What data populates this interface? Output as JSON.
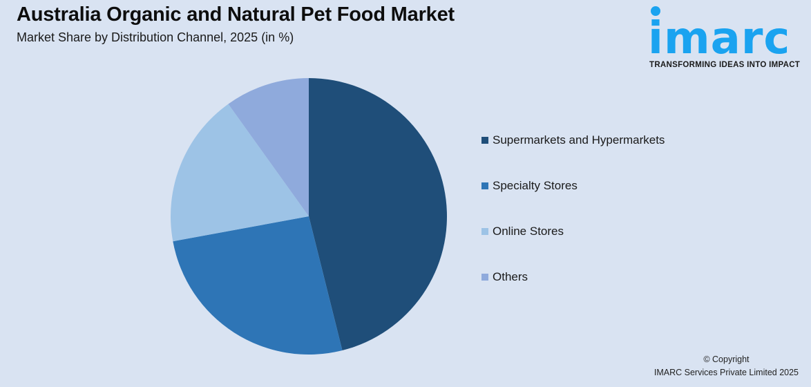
{
  "header": {
    "title": "Australia Organic and Natural Pet Food Market",
    "subtitle": "Market Share by Distribution Channel, 2025 (in %)"
  },
  "logo": {
    "wordmark": "imarc",
    "tagline": "TRANSFORMING IDEAS INTO IMPACT",
    "color": "#1aa3f0"
  },
  "legend": {
    "items": [
      {
        "label": "Supermarkets and Hypermarkets",
        "color": "#1f4e79"
      },
      {
        "label": "Specialty Stores",
        "color": "#2e75b6"
      },
      {
        "label": "Online Stores",
        "color": "#9dc3e6"
      },
      {
        "label": "Others",
        "color": "#8faadc"
      }
    ]
  },
  "footer": {
    "copyright_line1": "© Copyright",
    "copyright_line2": "IMARC Services Private Limited 2025"
  },
  "chart_data": {
    "type": "pie",
    "title": "Australia Organic and Natural Pet Food Market",
    "subtitle": "Market Share by Distribution Channel, 2025 (in %)",
    "categories": [
      "Supermarkets and Hypermarkets",
      "Specialty Stores",
      "Online Stores",
      "Others"
    ],
    "values": [
      46.1,
      26.0,
      18.0,
      9.9
    ],
    "colors": [
      "#1f4e79",
      "#2e75b6",
      "#9dc3e6",
      "#8faadc"
    ],
    "start_angle": "12 o'clock, clockwise",
    "legend_position": "right",
    "data_labels": false
  }
}
